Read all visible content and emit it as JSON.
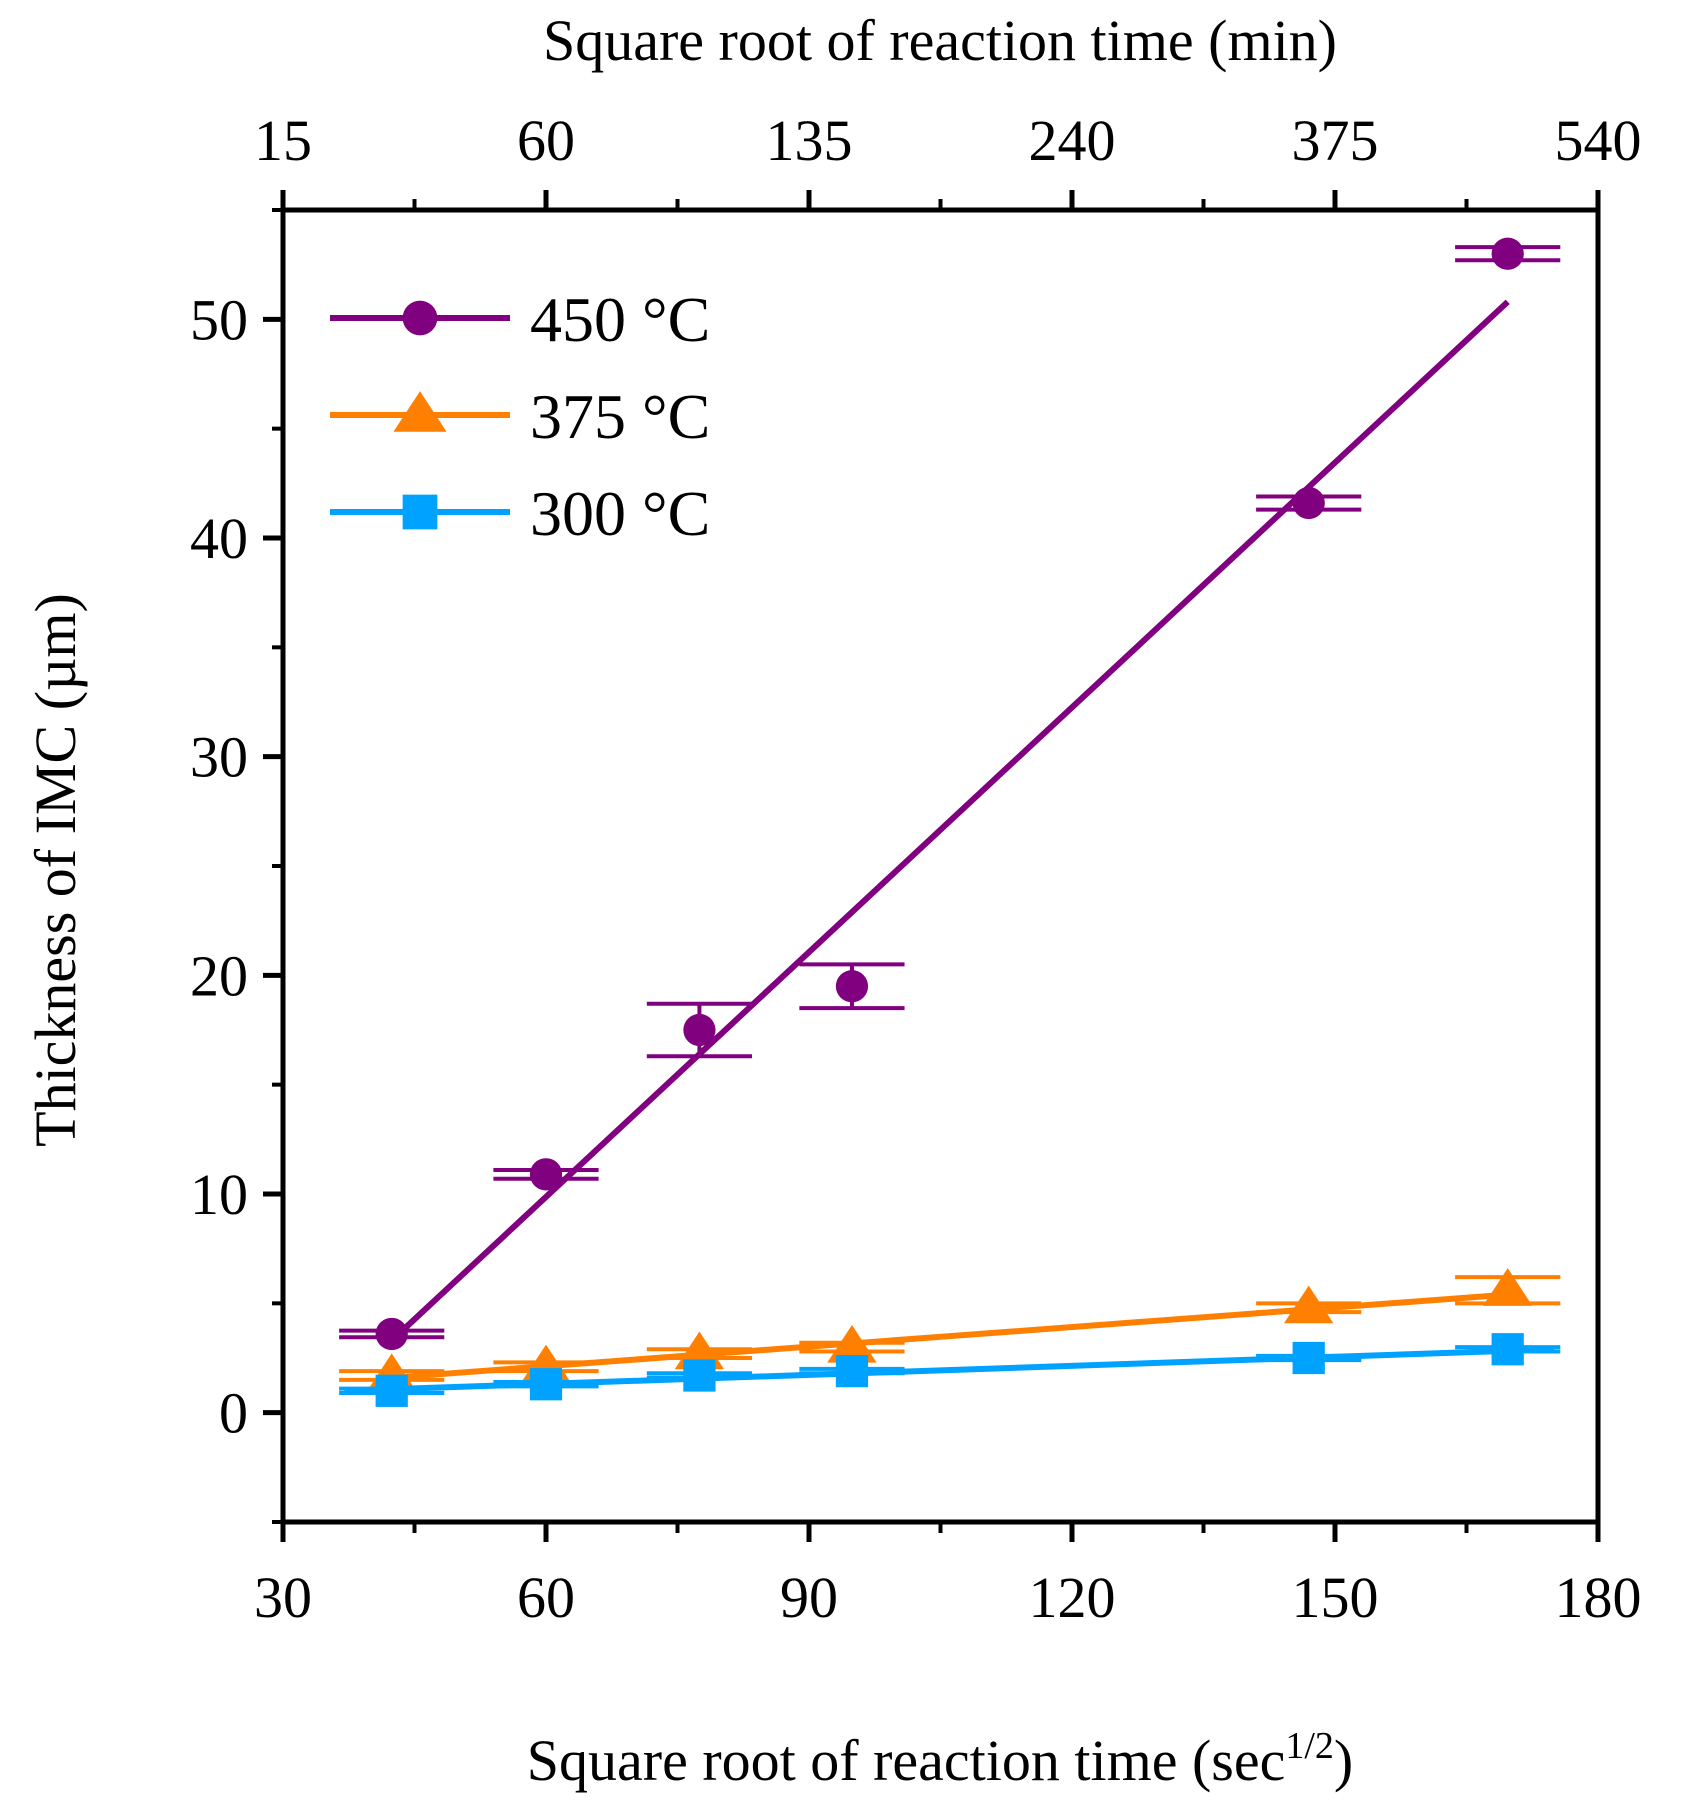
{
  "chart_data": {
    "type": "line",
    "title": "",
    "xlabel": "Square root of reaction time (sec",
    "xlabel_superscript": "1/2",
    "xlabel_suffix": ")",
    "ylabel": "Thickness of IMC (µm)",
    "top_xlabel": "Square root of reaction time (min)",
    "xlim": [
      30,
      180
    ],
    "ylim": [
      -5,
      55
    ],
    "x_ticks": [
      30,
      60,
      90,
      120,
      150,
      180
    ],
    "x_tick_labels": [
      "30",
      "60",
      "90",
      "120",
      "150",
      "180"
    ],
    "y_ticks": [
      0,
      10,
      20,
      30,
      40,
      50
    ],
    "y_tick_labels": [
      "0",
      "10",
      "20",
      "30",
      "40",
      "50"
    ],
    "top_ticks": [
      {
        "x": 30,
        "label": "15"
      },
      {
        "x": 60,
        "label": "60"
      },
      {
        "x": 90,
        "label": "135"
      },
      {
        "x": 120,
        "label": "240"
      },
      {
        "x": 150,
        "label": "375"
      },
      {
        "x": 180,
        "label": "540"
      }
    ],
    "legend_position": "top-left",
    "grid": false,
    "series": [
      {
        "name": "450 °C",
        "marker": "circle",
        "color": "#800080",
        "x": [
          42.4,
          60,
          77.5,
          94.9,
          147,
          169.7
        ],
        "values": [
          3.6,
          10.9,
          17.5,
          19.5,
          41.6,
          53.0
        ],
        "error_y": [
          0.15,
          0.2,
          1.2,
          1.0,
          0.3,
          0.3
        ],
        "error_x": [
          6,
          6,
          6,
          6,
          6,
          6
        ],
        "fit": {
          "x": [
            42.4,
            169.7
          ],
          "y": [
            3.3,
            50.8
          ]
        }
      },
      {
        "name": "375 °C",
        "marker": "triangle",
        "color": "#ff8000",
        "x": [
          42.4,
          60,
          77.5,
          94.9,
          147,
          169.7
        ],
        "values": [
          1.7,
          2.1,
          2.7,
          3.0,
          4.8,
          5.6
        ],
        "error_y": [
          0.2,
          0.2,
          0.2,
          0.2,
          0.2,
          0.6
        ],
        "error_x": [
          6,
          6,
          6,
          6,
          6,
          6
        ],
        "fit": {
          "x": [
            42.4,
            169.7
          ],
          "y": [
            1.6,
            5.4
          ]
        }
      },
      {
        "name": "300 °C",
        "marker": "square",
        "color": "#00a2ff",
        "x": [
          42.4,
          60,
          77.5,
          94.9,
          147,
          169.7
        ],
        "values": [
          1.0,
          1.3,
          1.7,
          1.9,
          2.5,
          2.9
        ],
        "error_y": [
          0.1,
          0.1,
          0.1,
          0.1,
          0.1,
          0.1
        ],
        "error_x": [
          6,
          6,
          6,
          6,
          6,
          6
        ],
        "fit": {
          "x": [
            37,
            175
          ],
          "y": [
            1.0,
            2.9
          ]
        }
      }
    ]
  }
}
